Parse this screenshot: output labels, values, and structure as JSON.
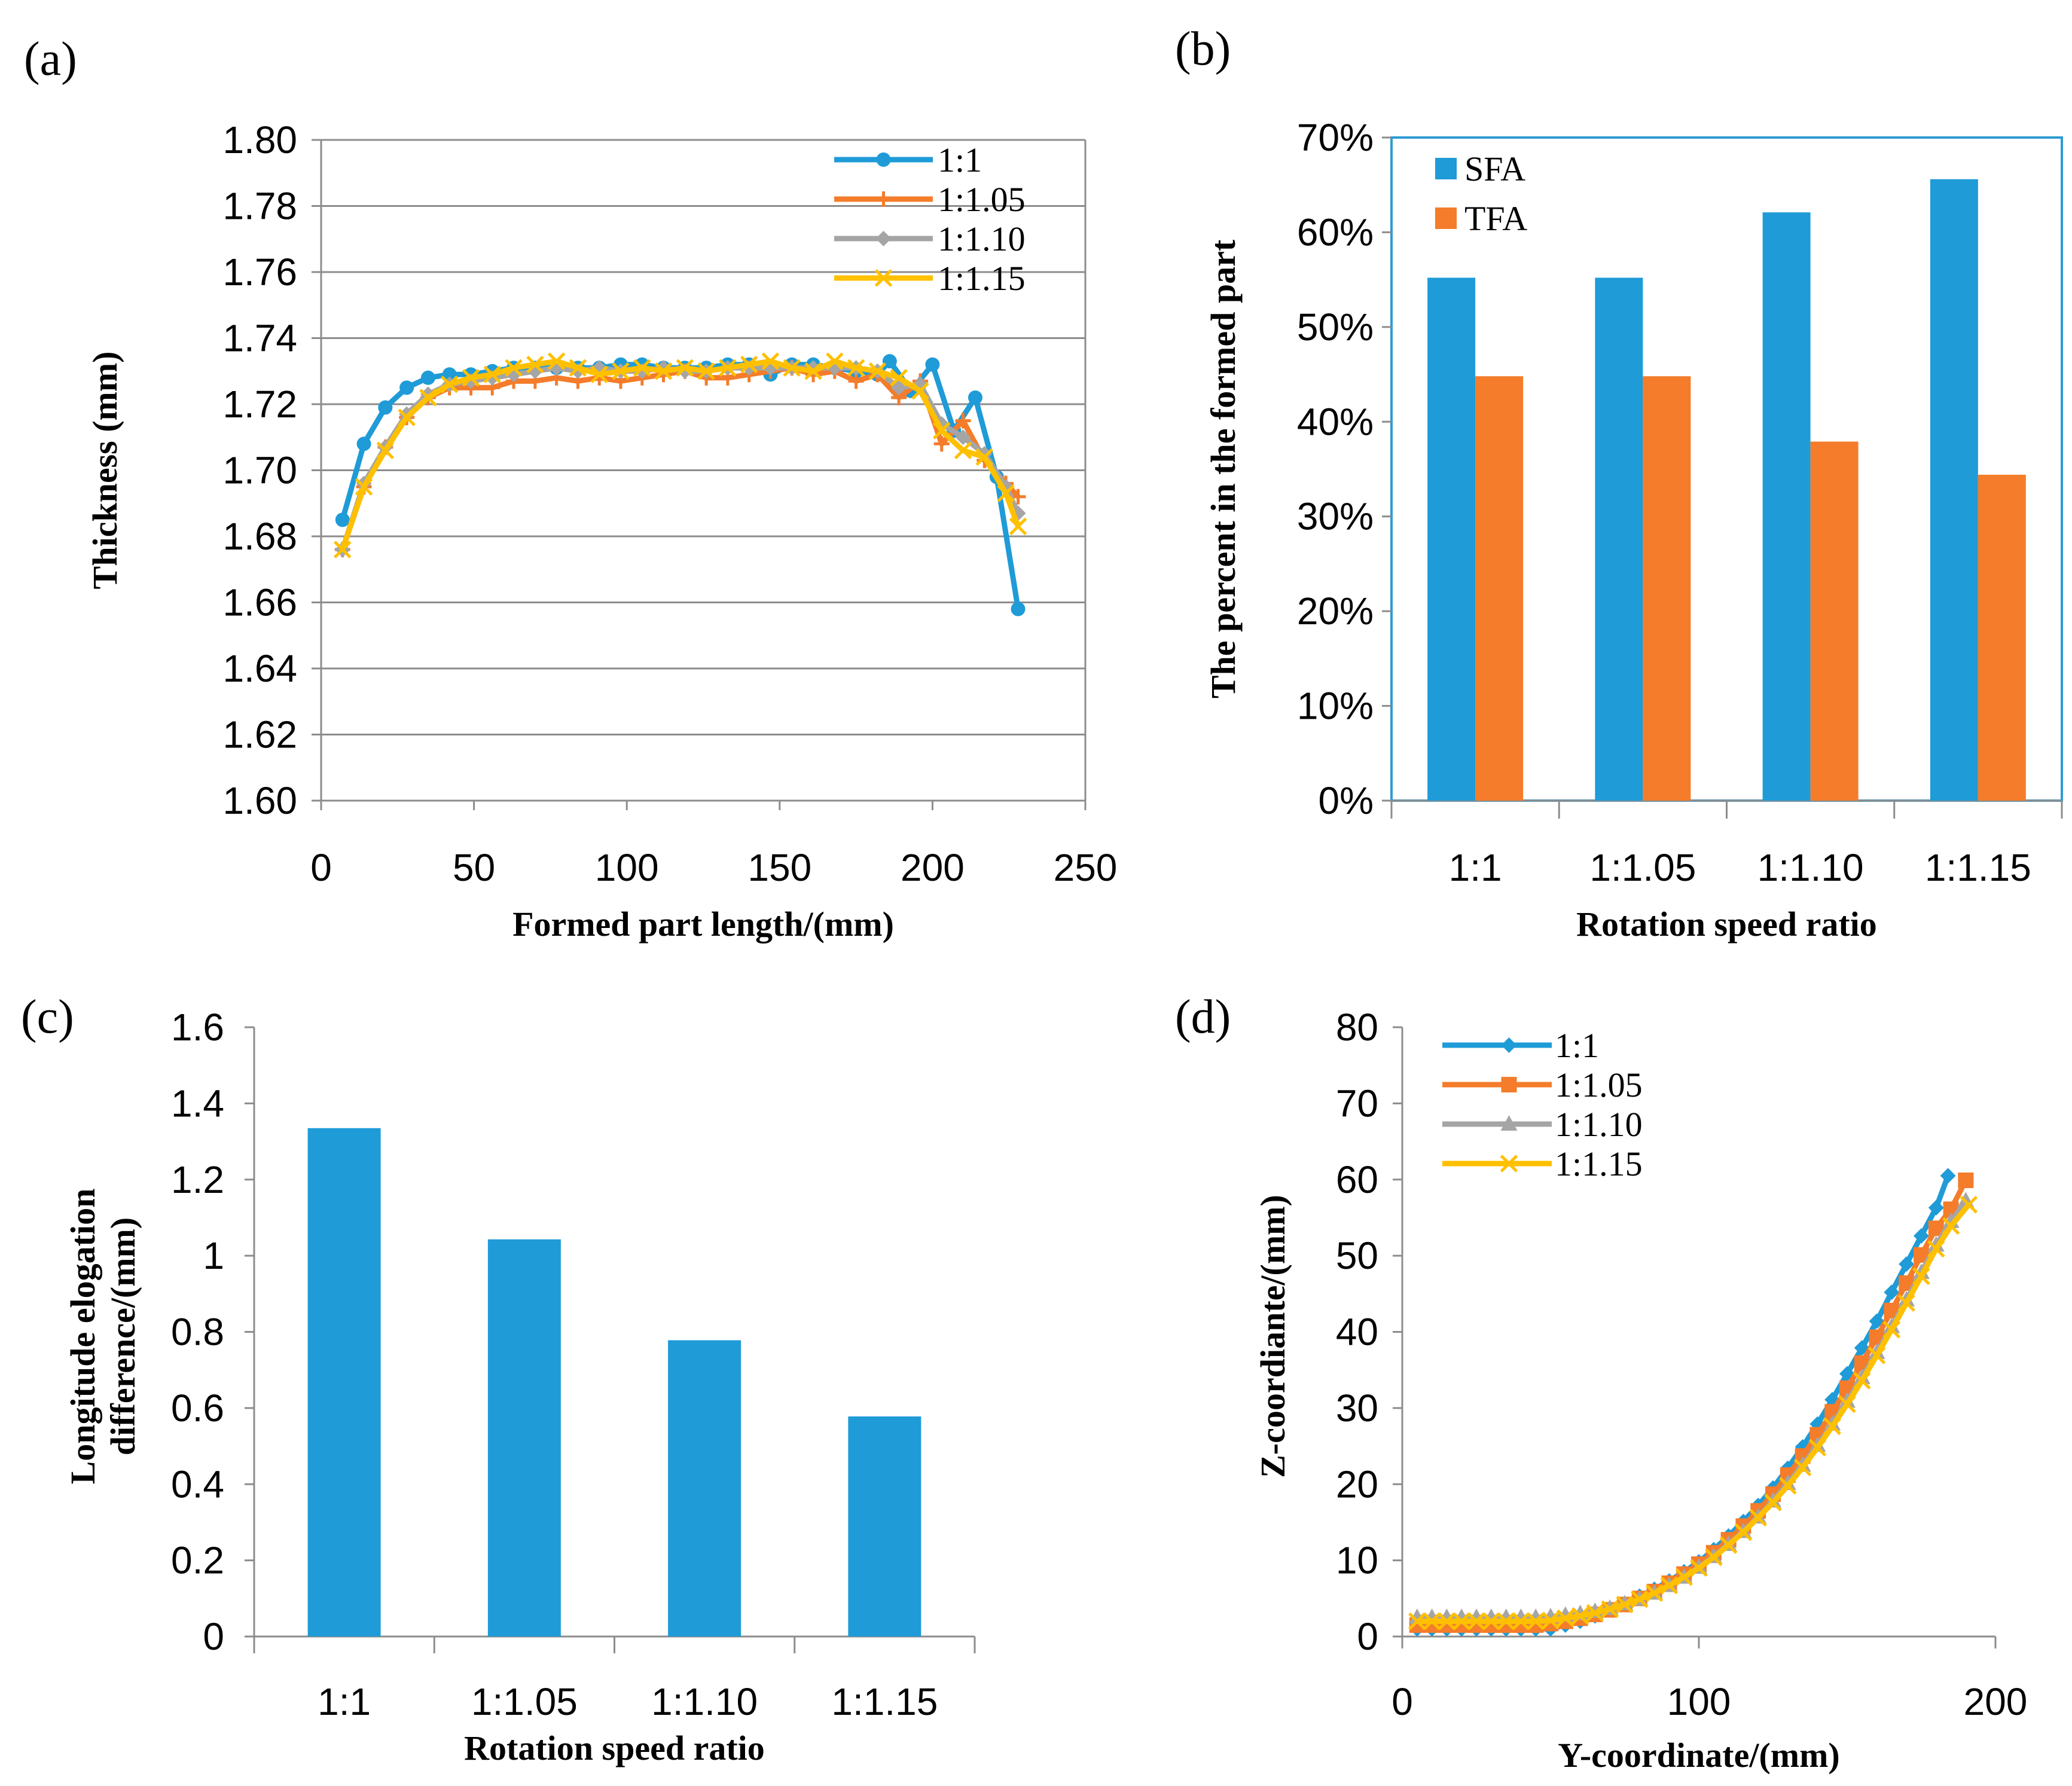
{
  "colors": {
    "blue": "#1F9BD7",
    "orange": "#F47C2A",
    "gray": "#A5A5A5",
    "yellow": "#FFC000",
    "grid": "#8C8C8C",
    "axis": "#8C8C8C",
    "frame_b": "#2E9BD1",
    "text": "#000000"
  },
  "chart_data": [
    {
      "id": "a",
      "type": "line",
      "panel_label": "(a)",
      "title": "",
      "xlabel": "Formed part length/(mm)",
      "ylabel": "Thickness (mm)",
      "xlim": [
        0,
        250
      ],
      "ylim": [
        1.6,
        1.8
      ],
      "xticks": [
        0,
        50,
        100,
        150,
        200,
        250
      ],
      "xtick_labels": [
        "0",
        "50",
        "100",
        "150",
        "200",
        "250"
      ],
      "yticks": [
        1.6,
        1.62,
        1.64,
        1.66,
        1.68,
        1.7,
        1.72,
        1.74,
        1.76,
        1.78,
        1.8
      ],
      "ytick_labels": [
        "1.60",
        "1.62",
        "1.64",
        "1.66",
        "1.68",
        "1.70",
        "1.72",
        "1.74",
        "1.76",
        "1.78",
        "1.80"
      ],
      "grid": true,
      "legend": "top-right",
      "series": [
        {
          "name": "1:1",
          "color": "#1F9BD7",
          "marker": "circle",
          "x": [
            7,
            14,
            21,
            28,
            35,
            42,
            49,
            56,
            63,
            70,
            77,
            84,
            91,
            98,
            105,
            112,
            119,
            126,
            133,
            140,
            147,
            154,
            161,
            168,
            175,
            182,
            186,
            193,
            200,
            207,
            214,
            221,
            228
          ],
          "y": [
            1.685,
            1.708,
            1.719,
            1.725,
            1.728,
            1.729,
            1.729,
            1.73,
            1.731,
            1.731,
            1.731,
            1.731,
            1.731,
            1.732,
            1.732,
            1.731,
            1.731,
            1.731,
            1.732,
            1.732,
            1.729,
            1.732,
            1.732,
            1.731,
            1.73,
            1.729,
            1.733,
            1.724,
            1.732,
            1.712,
            1.722,
            1.698,
            1.658
          ]
        },
        {
          "name": "1:1.05",
          "color": "#F47C2A",
          "marker": "plus",
          "x": [
            7,
            14,
            21,
            28,
            35,
            42,
            49,
            56,
            63,
            70,
            77,
            84,
            91,
            98,
            105,
            112,
            119,
            126,
            133,
            140,
            147,
            154,
            161,
            168,
            175,
            182,
            189,
            196,
            203,
            210,
            217,
            224,
            228
          ],
          "y": [
            1.676,
            1.695,
            1.707,
            1.716,
            1.722,
            1.725,
            1.725,
            1.725,
            1.727,
            1.727,
            1.728,
            1.727,
            1.728,
            1.727,
            1.728,
            1.729,
            1.73,
            1.728,
            1.728,
            1.729,
            1.73,
            1.731,
            1.729,
            1.73,
            1.727,
            1.729,
            1.722,
            1.727,
            1.708,
            1.715,
            1.703,
            1.696,
            1.692
          ]
        },
        {
          "name": "1:1.10",
          "color": "#A5A5A5",
          "marker": "diamond",
          "x": [
            7,
            14,
            21,
            28,
            35,
            42,
            49,
            56,
            63,
            70,
            77,
            84,
            91,
            98,
            105,
            112,
            119,
            126,
            133,
            140,
            147,
            154,
            161,
            168,
            175,
            182,
            189,
            196,
            203,
            210,
            217,
            224,
            228
          ],
          "y": [
            1.676,
            1.696,
            1.707,
            1.717,
            1.723,
            1.726,
            1.727,
            1.728,
            1.729,
            1.73,
            1.731,
            1.73,
            1.731,
            1.73,
            1.73,
            1.731,
            1.73,
            1.73,
            1.731,
            1.731,
            1.731,
            1.731,
            1.731,
            1.731,
            1.731,
            1.73,
            1.725,
            1.726,
            1.714,
            1.71,
            1.705,
            1.695,
            1.687
          ]
        },
        {
          "name": "1:1.15",
          "color": "#FFC000",
          "marker": "x",
          "x": [
            7,
            14,
            21,
            28,
            35,
            42,
            49,
            56,
            63,
            70,
            77,
            84,
            91,
            98,
            105,
            112,
            119,
            126,
            133,
            140,
            147,
            154,
            161,
            168,
            175,
            182,
            189,
            196,
            203,
            210,
            217,
            224,
            228
          ],
          "y": [
            1.676,
            1.695,
            1.706,
            1.716,
            1.722,
            1.726,
            1.728,
            1.729,
            1.731,
            1.732,
            1.733,
            1.731,
            1.729,
            1.73,
            1.731,
            1.73,
            1.731,
            1.73,
            1.731,
            1.732,
            1.733,
            1.731,
            1.73,
            1.733,
            1.731,
            1.73,
            1.728,
            1.724,
            1.712,
            1.706,
            1.704,
            1.693,
            1.683
          ]
        }
      ]
    },
    {
      "id": "b",
      "type": "bar",
      "panel_label": "(b)",
      "title": "",
      "xlabel": "Rotation speed ratio",
      "ylabel": "The percent in the formed part",
      "categories": [
        "1:1",
        "1:1.05",
        "1:1.10",
        "1:1.15"
      ],
      "ylim": [
        0,
        70
      ],
      "yticks": [
        0,
        10,
        20,
        30,
        40,
        50,
        60,
        70
      ],
      "ytick_labels": [
        "0%",
        "10%",
        "20%",
        "30%",
        "40%",
        "50%",
        "60%",
        "70%"
      ],
      "grid": false,
      "legend": "top-left",
      "series": [
        {
          "name": "SFA",
          "color": "#1F9BD7",
          "values": [
            55.2,
            55.2,
            62.1,
            65.6
          ]
        },
        {
          "name": "TFA",
          "color": "#F47C2A",
          "values": [
            44.8,
            44.8,
            37.9,
            34.4
          ]
        }
      ]
    },
    {
      "id": "c",
      "type": "bar",
      "panel_label": "(c)",
      "title": "",
      "xlabel": "Rotation speed ratio",
      "ylabel_lines": [
        "Longitude elogation",
        "difference/(mm)"
      ],
      "categories": [
        "1:1",
        "1:1.05",
        "1:1.10",
        "1:1.15"
      ],
      "ylim": [
        0,
        1.6
      ],
      "yticks": [
        0,
        0.2,
        0.4,
        0.6,
        0.8,
        1,
        1.2,
        1.4,
        1.6
      ],
      "ytick_labels": [
        "0",
        "0.2",
        "0.4",
        "0.6",
        "0.8",
        "1",
        "1.2",
        "1.4",
        "1.6"
      ],
      "grid": false,
      "series": [
        {
          "name": "Longitude elogation difference",
          "color": "#1F9BD7",
          "values": [
            1.335,
            1.043,
            0.778,
            0.578
          ]
        }
      ]
    },
    {
      "id": "d",
      "type": "line",
      "panel_label": "(d)",
      "title": "",
      "xlabel": "Y-coordinate/(mm)",
      "ylabel": "Z-coordiante/(mm)",
      "xlim": [
        0,
        200
      ],
      "ylim": [
        0,
        80
      ],
      "xticks": [
        0,
        100,
        200
      ],
      "xtick_labels": [
        "0",
        "100",
        "200"
      ],
      "yticks": [
        0,
        10,
        20,
        30,
        40,
        50,
        60,
        70,
        80
      ],
      "ytick_labels": [
        "0",
        "10",
        "20",
        "30",
        "40",
        "50",
        "60",
        "70",
        "80"
      ],
      "grid": false,
      "legend": "top-left",
      "series": [
        {
          "name": "1:1",
          "color": "#1F9BD7",
          "marker": "diamond",
          "x": [
            5,
            10,
            15,
            20,
            25,
            30,
            35,
            40,
            45,
            50,
            55,
            60,
            65,
            70,
            75,
            80,
            85,
            90,
            95,
            100,
            105,
            110,
            115,
            120,
            125,
            130,
            135,
            140,
            145,
            150,
            155,
            160,
            165,
            170,
            175,
            180,
            184
          ],
          "y": [
            1,
            1,
            1,
            1,
            1,
            1,
            1,
            1,
            1,
            1,
            1.5,
            2,
            2.7,
            3.5,
            4.3,
            5.3,
            6.2,
            7.3,
            8.5,
            9.8,
            11.4,
            13.2,
            15.1,
            17.2,
            19.5,
            22.1,
            24.9,
            27.9,
            31.1,
            34.5,
            37.9,
            41.4,
            45.2,
            48.9,
            52.6,
            56.3,
            60.5
          ]
        },
        {
          "name": "1:1.05",
          "color": "#F47C2A",
          "marker": "square",
          "x": [
            5,
            10,
            15,
            20,
            25,
            30,
            35,
            40,
            45,
            50,
            55,
            60,
            65,
            70,
            75,
            80,
            85,
            90,
            95,
            100,
            105,
            110,
            115,
            120,
            125,
            130,
            135,
            140,
            145,
            150,
            155,
            160,
            165,
            170,
            175,
            180,
            185,
            190
          ],
          "y": [
            1.5,
            1.5,
            1.5,
            1.5,
            1.5,
            1.5,
            1.5,
            1.5,
            1.5,
            1.7,
            2,
            2.4,
            2.9,
            3.5,
            4.2,
            5,
            5.9,
            7,
            8.2,
            9.5,
            11,
            12.7,
            14.5,
            16.5,
            18.7,
            21.2,
            23.7,
            26.5,
            29.5,
            32.6,
            35.9,
            39.3,
            42.8,
            46.4,
            50.1,
            53.6,
            56.1,
            59.9
          ]
        },
        {
          "name": "1:1.10",
          "color": "#A5A5A5",
          "marker": "triangle",
          "x": [
            5,
            10,
            15,
            20,
            25,
            30,
            35,
            40,
            45,
            50,
            55,
            60,
            65,
            70,
            75,
            80,
            85,
            90,
            95,
            100,
            105,
            110,
            115,
            120,
            125,
            130,
            135,
            140,
            145,
            150,
            155,
            160,
            165,
            170,
            175,
            180,
            185,
            190
          ],
          "y": [
            2.5,
            2.5,
            2.5,
            2.5,
            2.5,
            2.5,
            2.5,
            2.5,
            2.5,
            2.6,
            2.8,
            3,
            3.3,
            3.7,
            4.3,
            4.9,
            5.7,
            6.7,
            7.8,
            9.1,
            10.5,
            12.1,
            13.8,
            15.7,
            17.8,
            20.1,
            22.5,
            25.1,
            27.9,
            30.9,
            34,
            37.3,
            40.7,
            44.2,
            47.8,
            51.4,
            54.5,
            57.2
          ]
        },
        {
          "name": "1:1.15",
          "color": "#FFC000",
          "marker": "x",
          "x": [
            5,
            10,
            15,
            20,
            25,
            30,
            35,
            40,
            45,
            50,
            55,
            60,
            65,
            70,
            75,
            80,
            85,
            90,
            95,
            100,
            105,
            110,
            115,
            120,
            125,
            130,
            135,
            140,
            145,
            150,
            155,
            160,
            165,
            170,
            175,
            180,
            185,
            191
          ],
          "y": [
            2,
            2,
            2,
            2,
            2,
            2,
            2,
            2,
            2,
            2.1,
            2.4,
            2.7,
            3.1,
            3.6,
            4.2,
            4.9,
            5.7,
            6.7,
            7.8,
            9,
            10.4,
            12,
            13.7,
            15.6,
            17.6,
            19.8,
            22.2,
            24.8,
            27.6,
            30.5,
            33.6,
            36.9,
            40.3,
            43.8,
            47.3,
            50.9,
            53.9,
            56.7
          ]
        }
      ]
    }
  ]
}
